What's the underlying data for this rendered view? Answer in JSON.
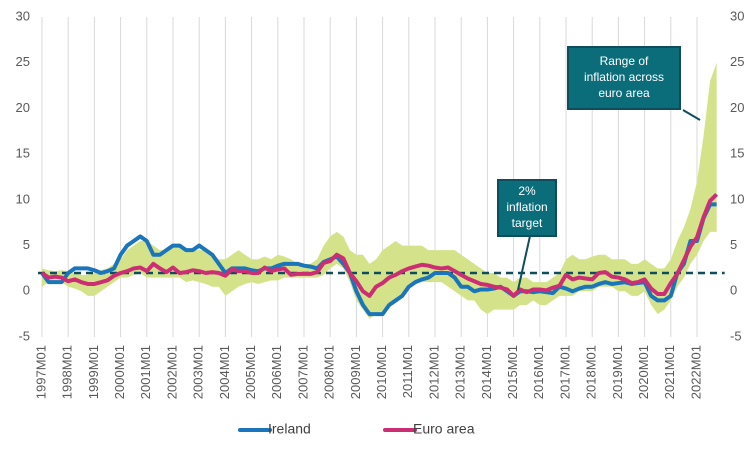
{
  "chart_data": {
    "type": "line",
    "categories": [
      "1997M01",
      null,
      null,
      null,
      "1998M01",
      null,
      null,
      null,
      "1999M01",
      null,
      null,
      null,
      "2000M01",
      null,
      null,
      null,
      "2001M01",
      null,
      null,
      null,
      "2002M01",
      null,
      null,
      null,
      "2003M01",
      null,
      null,
      null,
      "2004M01",
      null,
      null,
      null,
      "2005M01",
      null,
      null,
      null,
      "2006M01",
      null,
      null,
      null,
      "2007M01",
      null,
      null,
      null,
      "2008M01",
      null,
      null,
      null,
      "2009M01",
      null,
      null,
      null,
      "2010M01",
      null,
      null,
      null,
      "2011M01",
      null,
      null,
      null,
      "2012M01",
      null,
      null,
      null,
      "2013M01",
      null,
      null,
      null,
      "2014M01",
      null,
      null,
      null,
      "2015M01",
      null,
      null,
      null,
      "2016M01",
      null,
      null,
      null,
      "2017M01",
      null,
      null,
      null,
      "2018M01",
      null,
      null,
      null,
      "2019M01",
      null,
      null,
      null,
      "2020M01",
      null,
      null,
      null,
      "2021M01",
      null,
      null,
      null,
      "2022M01",
      null,
      null,
      null
    ],
    "series": [
      {
        "name": "Ireland",
        "color": "#1b75bb",
        "values": [
          2.0,
          1.0,
          1.0,
          1.0,
          2.0,
          2.5,
          2.5,
          2.5,
          2.3,
          2.0,
          2.2,
          2.5,
          4.0,
          5.0,
          5.5,
          6.0,
          5.5,
          4.0,
          4.0,
          4.5,
          5.0,
          5.0,
          4.5,
          4.5,
          5.0,
          4.5,
          4.0,
          3.0,
          2.0,
          2.5,
          2.5,
          2.5,
          2.3,
          2.2,
          2.5,
          2.5,
          2.8,
          3.0,
          3.0,
          3.0,
          2.8,
          2.7,
          2.5,
          3.2,
          3.5,
          3.8,
          3.0,
          2.0,
          0.0,
          -1.5,
          -2.5,
          -2.5,
          -2.5,
          -1.5,
          -1.0,
          -0.5,
          0.5,
          1.0,
          1.3,
          1.5,
          2.0,
          2.0,
          2.0,
          1.5,
          0.5,
          0.5,
          0.0,
          0.2,
          0.2,
          0.3,
          0.5,
          0.0,
          -0.5,
          0.0,
          0.0,
          -0.1,
          0.0,
          -0.1,
          -0.2,
          0.5,
          0.3,
          0.0,
          0.3,
          0.5,
          0.5,
          0.8,
          1.0,
          0.8,
          0.9,
          1.0,
          0.8,
          0.9,
          1.0,
          -0.5,
          -1.0,
          -1.0,
          -0.5,
          2.0,
          3.0,
          5.5,
          5.5,
          8.0,
          9.5,
          9.5
        ]
      },
      {
        "name": "Euro area",
        "color": "#cc2e73",
        "values": [
          2.0,
          1.5,
          1.6,
          1.5,
          1.1,
          1.3,
          1.0,
          0.8,
          0.8,
          1.0,
          1.2,
          1.7,
          2.0,
          2.2,
          2.5,
          2.6,
          2.2,
          3.0,
          2.5,
          2.1,
          2.6,
          2.0,
          2.1,
          2.3,
          2.2,
          2.0,
          2.1,
          2.0,
          1.7,
          2.4,
          2.2,
          2.2,
          2.0,
          2.0,
          2.6,
          2.2,
          2.4,
          2.5,
          1.8,
          1.9,
          1.9,
          1.9,
          2.1,
          3.1,
          3.3,
          4.0,
          3.6,
          2.0,
          1.1,
          0.0,
          -0.5,
          0.5,
          0.9,
          1.5,
          1.8,
          2.2,
          2.5,
          2.7,
          2.9,
          2.8,
          2.6,
          2.5,
          2.6,
          2.2,
          1.8,
          1.4,
          1.1,
          0.8,
          0.7,
          0.5,
          0.4,
          0.2,
          -0.5,
          0.2,
          -0.1,
          0.2,
          0.2,
          0.1,
          0.4,
          0.6,
          1.8,
          1.3,
          1.5,
          1.4,
          1.3,
          2.0,
          2.1,
          1.6,
          1.5,
          1.3,
          0.9,
          1.0,
          1.3,
          0.3,
          -0.3,
          -0.3,
          0.9,
          1.9,
          3.4,
          4.9,
          5.9,
          8.1,
          9.9,
          10.6
        ]
      }
    ],
    "range": {
      "color": "#d4e38a",
      "high": [
        2.5,
        2.3,
        2.2,
        2.3,
        2.2,
        2.0,
        1.8,
        1.8,
        2.0,
        2.3,
        2.5,
        3.0,
        3.5,
        4.5,
        5.0,
        5.5,
        5.5,
        5.0,
        4.5,
        4.5,
        5.0,
        5.0,
        4.5,
        4.5,
        4.5,
        4.5,
        4.0,
        3.5,
        3.5,
        4.0,
        4.5,
        4.0,
        3.5,
        3.5,
        3.8,
        3.5,
        4.0,
        3.8,
        3.5,
        3.0,
        3.0,
        3.0,
        3.5,
        5.0,
        6.0,
        6.5,
        6.0,
        4.5,
        4.0,
        4.0,
        3.0,
        3.5,
        4.5,
        5.0,
        5.5,
        5.0,
        5.0,
        5.0,
        5.0,
        4.5,
        4.5,
        4.5,
        4.5,
        4.5,
        4.0,
        3.5,
        3.0,
        2.5,
        2.0,
        2.0,
        1.5,
        1.5,
        1.0,
        1.5,
        1.5,
        1.0,
        1.0,
        1.0,
        1.5,
        2.0,
        3.5,
        4.0,
        3.5,
        3.5,
        3.8,
        4.0,
        4.0,
        3.5,
        3.5,
        3.5,
        3.0,
        3.0,
        3.5,
        3.0,
        2.5,
        2.5,
        3.5,
        5.5,
        7.0,
        9.0,
        12,
        17,
        23,
        25
      ],
      "low": [
        0.5,
        1.0,
        1.0,
        1.0,
        0.5,
        0.3,
        0.0,
        -0.5,
        -0.5,
        0,
        0.5,
        1.0,
        1.5,
        1.5,
        1.8,
        2.0,
        1.5,
        1.5,
        1.5,
        1.5,
        1.5,
        1.5,
        1.0,
        1.2,
        1.0,
        0.8,
        0.5,
        0.5,
        -0.5,
        0,
        0.5,
        0.8,
        1.0,
        0.8,
        1.0,
        1.2,
        1.2,
        1.5,
        1.5,
        1.5,
        1.5,
        1.5,
        1.5,
        1.8,
        2.5,
        3.0,
        2.5,
        1.0,
        -1.0,
        -2.0,
        -3.0,
        -2.5,
        -2.5,
        -1.5,
        -1.0,
        -0.5,
        0.5,
        1.0,
        1.0,
        1.0,
        1.0,
        1.0,
        0.5,
        0.0,
        -0.5,
        -1.0,
        -1.0,
        -2.0,
        -2.5,
        -2.0,
        -2.0,
        -2.0,
        -2.0,
        -1.5,
        -1.5,
        -1.0,
        -1.5,
        -1.5,
        -1.0,
        -0.5,
        -0.5,
        -0.5,
        0.0,
        0.0,
        0.0,
        0.5,
        0.5,
        0.5,
        0.0,
        0.0,
        -0.5,
        -0.5,
        0.0,
        -1.5,
        -2.5,
        -2.0,
        -1.0,
        0.5,
        1.5,
        3.0,
        4.0,
        5.5,
        6.5,
        6.5
      ]
    },
    "reference_line": {
      "value": 2,
      "color": "#0f4d5c"
    },
    "annotations": [
      {
        "lines": [
          "2%",
          "inflation",
          "target"
        ],
        "color": "#0b6c7a"
      },
      {
        "lines": [
          "Range of",
          "inflation across",
          "euro area"
        ],
        "color": "#0b6c7a"
      }
    ],
    "ylim": [
      -5,
      30
    ],
    "yticks": [
      -5,
      0,
      5,
      10,
      15,
      20,
      25,
      30
    ],
    "y2lim": [
      -5,
      30
    ],
    "y2ticks": [
      -5,
      0,
      5,
      10,
      15,
      20,
      25,
      30
    ],
    "grid": true
  }
}
